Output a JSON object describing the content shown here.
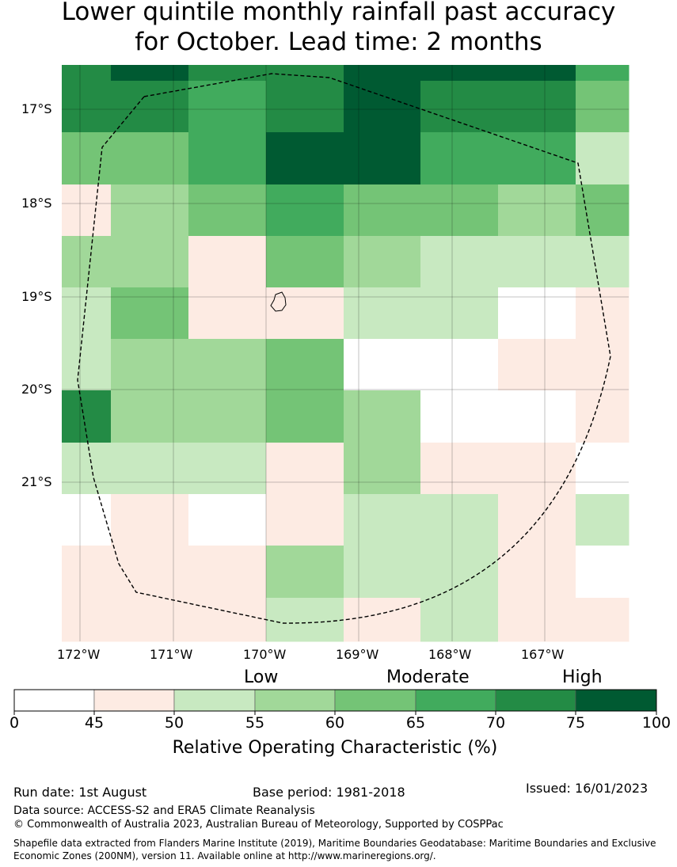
{
  "title_line1": "Lower quintile monthly rainfall past accuracy",
  "title_line2": "for October. Lead time: 2 months",
  "lat_labels": [
    "17°S",
    "18°S",
    "19°S",
    "20°S",
    "21°S"
  ],
  "lon_labels": [
    "172°W",
    "171°W",
    "170°W",
    "169°W",
    "168°W",
    "167°W"
  ],
  "colorbar": {
    "categories": [
      "Low",
      "Moderate",
      "High"
    ],
    "ticks": [
      "0",
      "45",
      "50",
      "55",
      "60",
      "65",
      "70",
      "75",
      "100"
    ],
    "label": "Relative Operating Characteristic (%)",
    "colors": [
      "#ffffff",
      "#fdebe3",
      "#c8e9c1",
      "#a1d899",
      "#74c476",
      "#41ab5d",
      "#238b45",
      "#005a32"
    ]
  },
  "grid_classes": [
    [
      6,
      7,
      6,
      6,
      7,
      7,
      7,
      5
    ],
    [
      6,
      6,
      5,
      6,
      7,
      6,
      6,
      4
    ],
    [
      4,
      4,
      5,
      7,
      7,
      5,
      5,
      2
    ],
    [
      1,
      3,
      4,
      5,
      4,
      4,
      3,
      4
    ],
    [
      3,
      3,
      1,
      4,
      3,
      2,
      2,
      2
    ],
    [
      2,
      4,
      1,
      1,
      2,
      2,
      0,
      1
    ],
    [
      2,
      3,
      3,
      4,
      0,
      0,
      1,
      1
    ],
    [
      6,
      3,
      3,
      4,
      3,
      0,
      0,
      1
    ],
    [
      2,
      2,
      2,
      1,
      3,
      1,
      1,
      0
    ],
    [
      0,
      1,
      0,
      1,
      2,
      2,
      1,
      2
    ],
    [
      1,
      1,
      1,
      3,
      2,
      2,
      1,
      0
    ],
    [
      1,
      1,
      1,
      2,
      1,
      2,
      1,
      1
    ]
  ],
  "footer": {
    "run_date": "Run date: 1st August",
    "base_period": "Base period: 1981-2018",
    "issued": "Issued: 16/01/2023",
    "data_source": "Data source: ACCESS-S2 and ERA5 Climate Reanalysis",
    "copyright": "© Commonwealth of Australia 2023, Australian Bureau of Meteorology, Supported by COSPPac",
    "shapefile_line1": "Shapefile data extracted from Flanders Marine Institute (2019), Maritime Boundaries Geodatabase: Maritime Boundaries and Exclusive",
    "shapefile_line2": "Economic Zones (200NM), version 11. Available online at http://www.marineregions.org/."
  }
}
